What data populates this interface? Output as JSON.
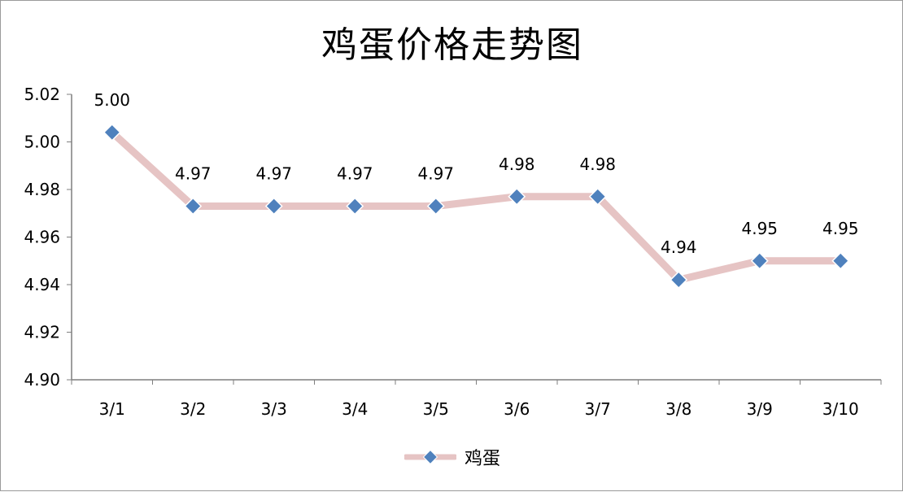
{
  "chart_data": {
    "type": "line",
    "title": "鸡蛋价格走势图",
    "categories": [
      "3/1",
      "3/2",
      "3/3",
      "3/4",
      "3/5",
      "3/6",
      "3/7",
      "3/8",
      "3/9",
      "3/10"
    ],
    "series": [
      {
        "name": "鸡蛋",
        "values": [
          5.004,
          4.973,
          4.973,
          4.973,
          4.973,
          4.977,
          4.977,
          4.942,
          4.95,
          4.95
        ],
        "data_labels": [
          "5.00",
          "4.97",
          "4.97",
          "4.97",
          "4.97",
          "4.98",
          "4.98",
          "4.94",
          "4.95",
          "4.95"
        ]
      }
    ],
    "ylim": [
      4.9,
      5.02
    ],
    "yticks": [
      "4.90",
      "4.92",
      "4.94",
      "4.96",
      "4.98",
      "5.00",
      "5.02"
    ],
    "grid": false,
    "legend_position": "bottom",
    "colors": {
      "line": "#e6c4c4",
      "marker": "#4f81bd",
      "marker_edge": "#ffffff",
      "axis": "#7f7f7f"
    }
  }
}
